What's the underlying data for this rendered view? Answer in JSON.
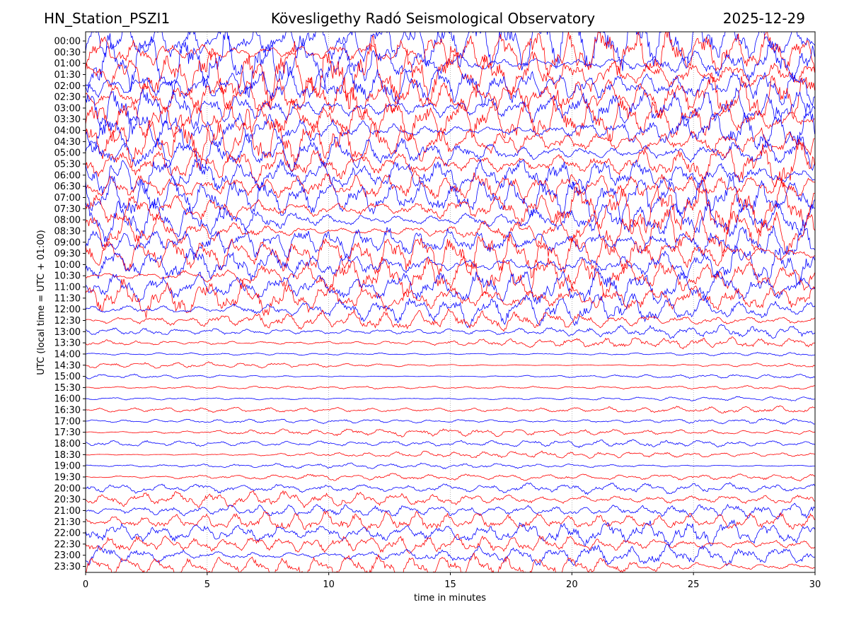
{
  "header": {
    "station": "HN_Station_PSZI1",
    "observatory": "Kövesligethy Radó Seismological Observatory",
    "date": "2025-12-29"
  },
  "chart_data": {
    "type": "line",
    "xlabel": "time in minutes",
    "ylabel": "UTC (local time = UTC + 01:00)",
    "xlim": [
      0,
      30
    ],
    "x_ticks": [
      0,
      5,
      10,
      15,
      20,
      25,
      30
    ],
    "row_labels": [
      "00:00",
      "00:30",
      "01:00",
      "01:30",
      "02:00",
      "02:30",
      "03:00",
      "03:30",
      "04:00",
      "04:30",
      "05:00",
      "05:30",
      "06:00",
      "06:30",
      "07:00",
      "07:30",
      "08:00",
      "08:30",
      "09:00",
      "09:30",
      "10:00",
      "10:30",
      "11:00",
      "11:30",
      "12:00",
      "12:30",
      "13:00",
      "13:30",
      "14:00",
      "14:30",
      "15:00",
      "15:30",
      "16:00",
      "16:30",
      "17:00",
      "17:30",
      "18:00",
      "18:30",
      "19:00",
      "19:30",
      "20:00",
      "20:30",
      "21:00",
      "21:30",
      "22:00",
      "22:30",
      "23:00",
      "23:30"
    ],
    "series_colors": [
      "#0000ff",
      "#ff0000"
    ],
    "trace_amplitude_rows": [
      6.0,
      6.5,
      6.5,
      6.0,
      6.0,
      5.5,
      5.5,
      5.5,
      5.0,
      5.0,
      5.0,
      5.0,
      5.0,
      5.0,
      5.0,
      5.0,
      5.0,
      5.0,
      5.0,
      5.0,
      4.5,
      4.5,
      4.0,
      3.5,
      3.0,
      2.0,
      1.2,
      1.0,
      0.4,
      0.6,
      0.5,
      0.4,
      0.4,
      0.7,
      0.7,
      0.8,
      0.8,
      0.7,
      0.5,
      0.9,
      1.2,
      1.5,
      1.8,
      2.2,
      2.6,
      2.8,
      3.0,
      3.2
    ]
  }
}
